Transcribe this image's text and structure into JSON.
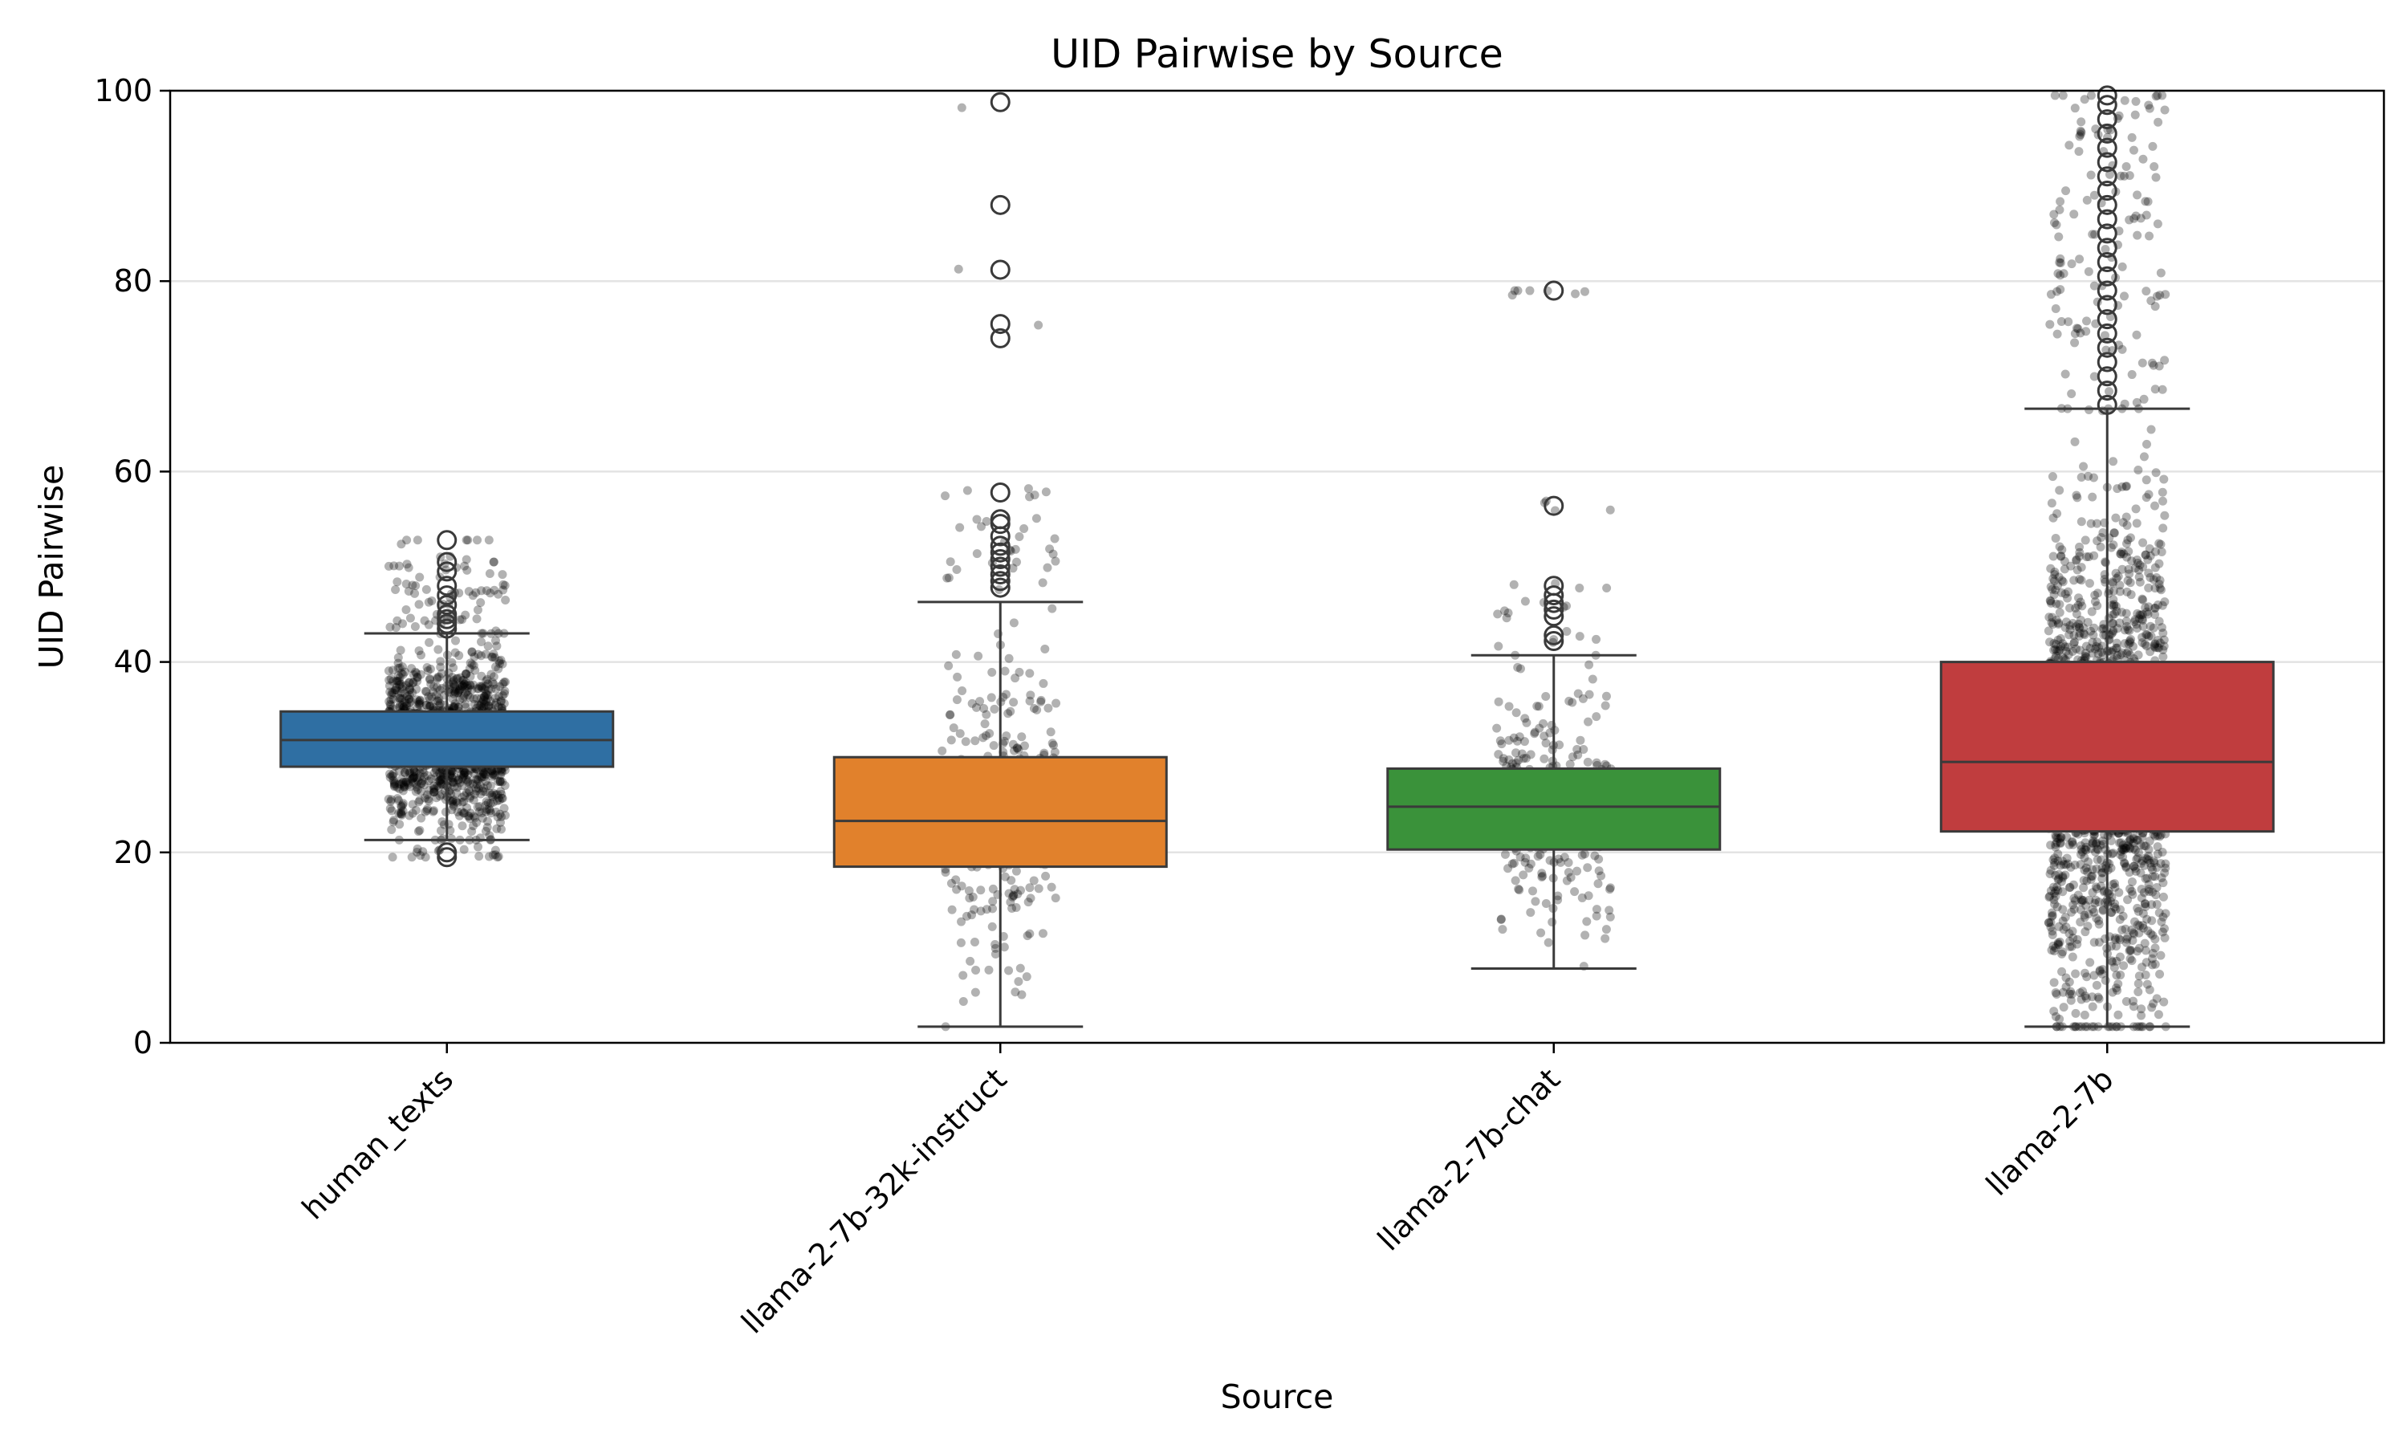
{
  "chart_data": {
    "type": "box",
    "title": "UID Pairwise by Source",
    "xlabel": "Source",
    "ylabel": "UID Pairwise",
    "ylim": [
      0,
      100
    ],
    "yticks": [
      "0",
      "20",
      "40",
      "60",
      "80",
      "100"
    ],
    "ytick_values": [
      0,
      20,
      40,
      60,
      80,
      100
    ],
    "grid": "horizontal",
    "categories": [
      "human_texts",
      "llama-2-7b-32k-instruct",
      "llama-2-7b-chat",
      "llama-2-7b"
    ],
    "series": [
      {
        "category": "human_texts",
        "color": "#2f6fa3",
        "q1": 29.0,
        "median": 31.8,
        "q3": 34.8,
        "whisker_low": 21.3,
        "whisker_high": 43.0,
        "outliers": [
          19.5,
          20.0,
          43.5,
          44.0,
          44.5,
          45.0,
          46.0,
          47.0,
          48.0,
          49.5,
          50.5,
          52.8
        ],
        "strip": {
          "count": 1400,
          "min": 19.5,
          "max": 52.8
        }
      },
      {
        "category": "llama-2-7b-32k-instruct",
        "color": "#e1812c",
        "q1": 18.5,
        "median": 23.3,
        "q3": 30.0,
        "whisker_low": 1.7,
        "whisker_high": 46.3,
        "outliers": [
          47.8,
          48.5,
          49.2,
          50.0,
          50.8,
          51.5,
          52.2,
          53.2,
          54.5,
          55.0,
          57.8,
          74.0,
          75.5,
          81.2,
          88.0,
          98.8
        ],
        "strip": {
          "count": 330,
          "min": 1.7,
          "max": 98.8
        }
      },
      {
        "category": "llama-2-7b-chat",
        "color": "#3a923a",
        "q1": 20.3,
        "median": 24.8,
        "q3": 28.8,
        "whisker_low": 7.8,
        "whisker_high": 40.7,
        "outliers": [
          42.2,
          42.8,
          44.8,
          45.5,
          46.2,
          47.0,
          48.0,
          56.4,
          79.0
        ],
        "strip": {
          "count": 300,
          "min": 7.8,
          "max": 79.0
        }
      },
      {
        "category": "llama-2-7b",
        "color": "#c03d3e",
        "q1": 22.2,
        "median": 29.5,
        "q3": 40.0,
        "whisker_low": 1.7,
        "whisker_high": 66.6,
        "outliers": [
          67.0,
          68.5,
          70.0,
          71.5,
          73.0,
          74.5,
          76.0,
          77.5,
          79.0,
          80.5,
          82.0,
          83.5,
          85.0,
          86.5,
          88.0,
          89.5,
          91.0,
          92.5,
          94.0,
          95.5,
          97.0,
          98.5,
          99.5
        ],
        "strip": {
          "count": 1800,
          "min": 1.7,
          "max": 99.5
        }
      }
    ]
  }
}
